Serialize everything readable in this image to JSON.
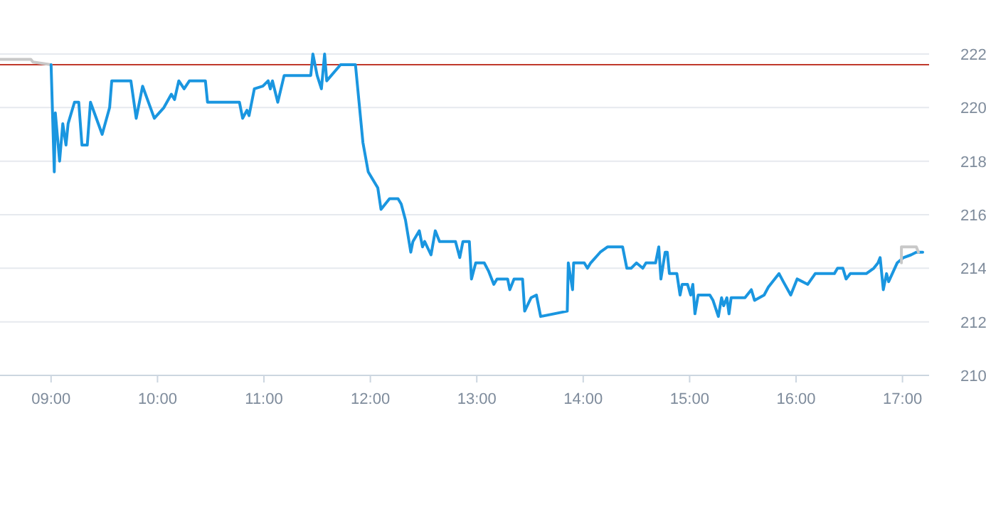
{
  "chart_data": {
    "type": "line",
    "xlim": [
      8.52,
      17.25
    ],
    "ylim": [
      210,
      222
    ],
    "xticks": [
      {
        "value": 9,
        "label": "09:00"
      },
      {
        "value": 10,
        "label": "10:00"
      },
      {
        "value": 11,
        "label": "11:00"
      },
      {
        "value": 12,
        "label": "12:00"
      },
      {
        "value": 13,
        "label": "13:00"
      },
      {
        "value": 14,
        "label": "14:00"
      },
      {
        "value": 15,
        "label": "15:00"
      },
      {
        "value": 16,
        "label": "16:00"
      },
      {
        "value": 17,
        "label": "17:00"
      }
    ],
    "yticks": [
      210,
      212,
      214,
      216,
      218,
      220,
      222
    ],
    "grid": "y",
    "marker": "none",
    "line_style": "solid",
    "ref_lines": [
      {
        "axis": "y",
        "value": 221.6,
        "color": "#c0392b"
      }
    ],
    "series": [
      {
        "color": "#c8c8c8",
        "x": [
          8.52,
          8.81,
          8.83,
          9.0
        ],
        "values": [
          221.8,
          221.8,
          221.7,
          221.6
        ]
      },
      {
        "color": "#1a96e0",
        "x": [
          9.0,
          9.03,
          9.04,
          9.08,
          9.11,
          9.14,
          9.16,
          9.22,
          9.26,
          9.29,
          9.34,
          9.37,
          9.48,
          9.55,
          9.57,
          9.75,
          9.8,
          9.86,
          9.97,
          10.06,
          10.13,
          10.16,
          10.2,
          10.25,
          10.3,
          10.45,
          10.47,
          10.77,
          10.8,
          10.84,
          10.86,
          10.91,
          10.99,
          11.04,
          11.06,
          11.08,
          11.13,
          11.19,
          11.44,
          11.46,
          11.5,
          11.54,
          11.57,
          11.59,
          11.72,
          11.86,
          11.93,
          11.98,
          12.04,
          12.07,
          12.1,
          12.18,
          12.26,
          12.29,
          12.33,
          12.38,
          12.4,
          12.46,
          12.49,
          12.51,
          12.57,
          12.61,
          12.65,
          12.8,
          12.84,
          12.87,
          12.93,
          12.95,
          12.99,
          13.07,
          13.11,
          13.16,
          13.19,
          13.29,
          13.31,
          13.35,
          13.43,
          13.45,
          13.51,
          13.56,
          13.6,
          13.85,
          13.86,
          13.9,
          13.91,
          14.01,
          14.04,
          14.07,
          14.16,
          14.23,
          14.37,
          14.41,
          14.45,
          14.5,
          14.56,
          14.59,
          14.68,
          14.71,
          14.73,
          14.77,
          14.79,
          14.81,
          14.88,
          14.91,
          14.93,
          14.98,
          15.01,
          15.03,
          15.05,
          15.08,
          15.19,
          15.22,
          15.27,
          15.3,
          15.32,
          15.35,
          15.37,
          15.39,
          15.52,
          15.58,
          15.61,
          15.7,
          15.74,
          15.84,
          15.88,
          15.95,
          16.01,
          16.11,
          16.18,
          16.36,
          16.39,
          16.44,
          16.47,
          16.51,
          16.66,
          16.73,
          16.77,
          16.79,
          16.82,
          16.85,
          16.87,
          16.95,
          17.01,
          17.08,
          17.13,
          17.19
        ],
        "values": [
          221.6,
          217.6,
          219.8,
          218.0,
          219.4,
          218.6,
          219.4,
          220.2,
          220.2,
          218.6,
          218.6,
          220.2,
          219.0,
          220.0,
          221.0,
          221.0,
          219.6,
          220.8,
          219.6,
          220.0,
          220.5,
          220.3,
          221.0,
          220.7,
          221.0,
          221.0,
          220.2,
          220.2,
          219.6,
          219.9,
          219.7,
          220.7,
          220.8,
          221.0,
          220.7,
          221.0,
          220.2,
          221.2,
          221.2,
          222.0,
          221.2,
          220.7,
          222.0,
          221.0,
          221.6,
          221.6,
          218.7,
          217.6,
          217.2,
          217.0,
          216.2,
          216.6,
          216.6,
          216.4,
          215.8,
          214.6,
          215.0,
          215.4,
          214.8,
          215.0,
          214.5,
          215.4,
          215.0,
          215.0,
          214.4,
          215.0,
          215.0,
          213.6,
          214.2,
          214.2,
          213.9,
          213.4,
          213.6,
          213.6,
          213.2,
          213.6,
          213.6,
          212.4,
          212.9,
          213.0,
          212.2,
          212.4,
          214.2,
          213.2,
          214.2,
          214.2,
          214.0,
          214.2,
          214.6,
          214.8,
          214.8,
          214.0,
          214.0,
          214.2,
          214.0,
          214.2,
          214.2,
          214.8,
          213.6,
          214.6,
          214.6,
          213.8,
          213.8,
          213.0,
          213.4,
          213.4,
          213.0,
          213.4,
          212.3,
          213.0,
          213.0,
          212.8,
          212.2,
          212.9,
          212.6,
          212.9,
          212.3,
          212.9,
          212.9,
          213.2,
          212.8,
          213.0,
          213.3,
          213.8,
          213.5,
          213.0,
          213.6,
          213.4,
          213.8,
          213.8,
          214.0,
          214.0,
          213.6,
          213.8,
          213.8,
          214.0,
          214.2,
          214.4,
          213.2,
          213.8,
          213.5,
          214.2,
          214.4,
          214.5,
          214.6,
          214.6
        ]
      },
      {
        "color": "#c8c8c8",
        "x": [
          16.99,
          16.99,
          17.13,
          17.15
        ],
        "values": [
          214.2,
          214.8,
          214.8,
          214.6
        ]
      }
    ]
  }
}
